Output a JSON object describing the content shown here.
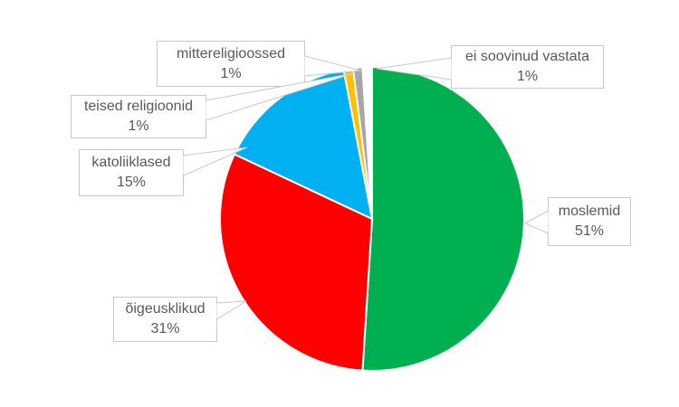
{
  "page": {
    "background": "#FFFFFF",
    "description_of_view": "pie chart with external callout data labels"
  },
  "chart_data": {
    "type": "pie",
    "title": "",
    "unit": "%",
    "direction": "clockwise",
    "start_angle_deg": 0,
    "legend": "none",
    "labels_style": "external white callout boxes with gray leader pointers, each showing category name and percent",
    "slices": [
      {
        "label": "moslemid",
        "value": 51,
        "pct_label": "51%",
        "color": "#00B050"
      },
      {
        "label": "õigeusklikud",
        "value": 31,
        "pct_label": "31%",
        "color": "#FF0000"
      },
      {
        "label": "katoliiklased",
        "value": 15,
        "pct_label": "15%",
        "color": "#00B0F0"
      },
      {
        "label": "teised religioonid",
        "value": 1,
        "pct_label": "1%",
        "color": "#FFC000"
      },
      {
        "label": "mittereligioossed",
        "value": 1,
        "pct_label": "1%",
        "color": "#A6A6A6"
      },
      {
        "label": "ei soovinud vastata",
        "value": 1,
        "pct_label": "1%",
        "color": "#FFFFFF"
      }
    ]
  },
  "style": {
    "callout_border": "#C9C9C9",
    "callout_text": "#595959",
    "slice_gap_color": "#FFFFFF"
  }
}
